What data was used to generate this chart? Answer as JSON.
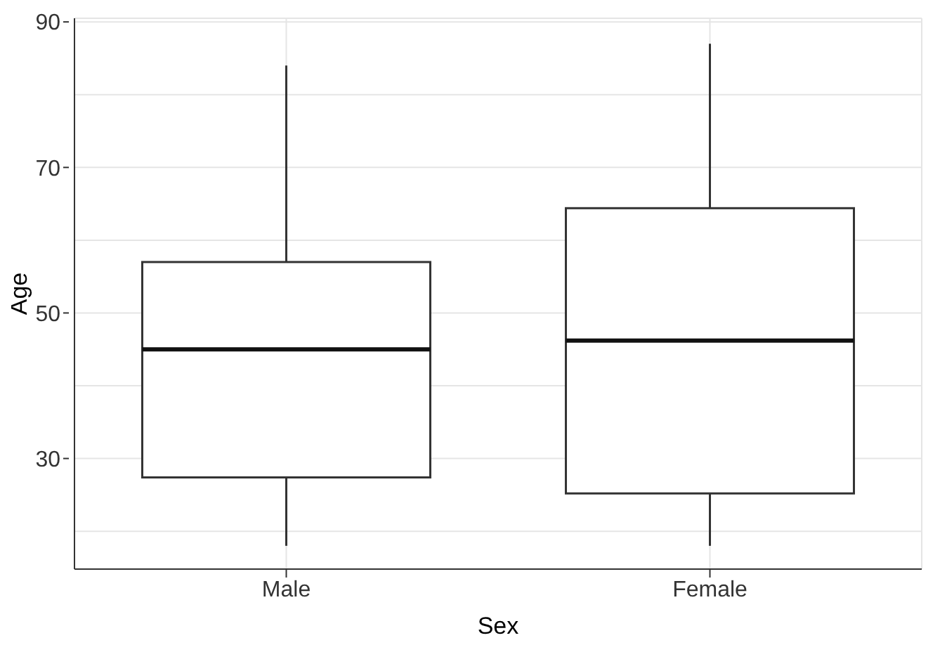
{
  "chart_data": {
    "type": "box",
    "xlabel": "Sex",
    "ylabel": "Age",
    "categories": [
      "Male",
      "Female"
    ],
    "boxes": [
      {
        "low": 18,
        "q1": 27.4,
        "median": 45,
        "q3": 57,
        "high": 84
      },
      {
        "low": 18,
        "q1": 25.2,
        "median": 46.2,
        "q3": 64.4,
        "high": 87
      }
    ],
    "ylim": [
      14.8,
      90.5
    ],
    "yticks": [
      {
        "value": 20,
        "label": null
      },
      30,
      {
        "value": 40,
        "label": null
      },
      50,
      {
        "value": 60,
        "label": null
      },
      70,
      {
        "value": 80,
        "label": null
      },
      90
    ],
    "grid": true,
    "legend": false
  }
}
